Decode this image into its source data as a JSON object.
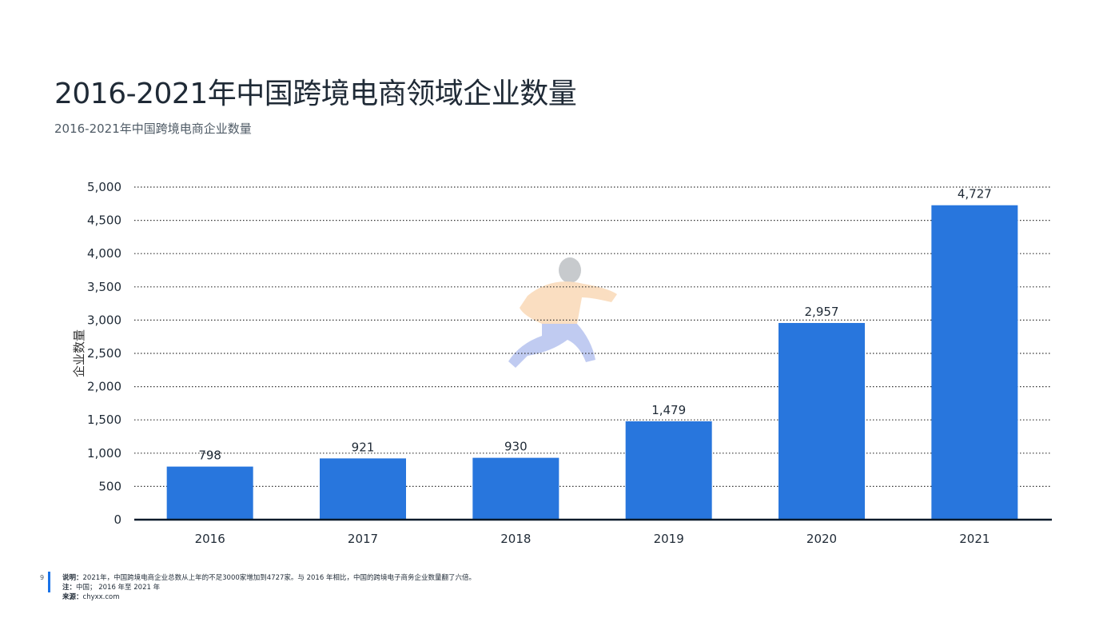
{
  "header": {
    "title": "2016-2021年中国跨境电商领域企业数量",
    "subtitle": "2016-2021年中国跨境电商企业数量"
  },
  "chart_data": {
    "type": "bar",
    "categories": [
      "2016",
      "2017",
      "2018",
      "2019",
      "2020",
      "2021"
    ],
    "values": [
      798,
      921,
      930,
      1479,
      2957,
      4727
    ],
    "value_labels": [
      "798",
      "921",
      "930",
      "1,479",
      "2,957",
      "4,727"
    ],
    "ylabel": "企业数量",
    "xlabel": "",
    "ylim": [
      0,
      5000
    ],
    "yticks": [
      0,
      500,
      1000,
      1500,
      2000,
      2500,
      3000,
      3500,
      4000,
      4500,
      5000
    ],
    "ytick_labels": [
      "0",
      "500",
      "1,000",
      "1,500",
      "2,000",
      "2,500",
      "3,000",
      "3,500",
      "4,000",
      "4,500",
      "5,000"
    ],
    "grid": "horizontal-dotted",
    "bar_color": "#2876dd"
  },
  "footer": {
    "page_number": "9",
    "note_label": "说明：",
    "note_text": "2021年，中国跨境电商企业总数从上年的不足3000家增加到4727家。与 2016 年相比，中国的跨境电子商务企业数量翻了六倍。",
    "zhu_label": "注：",
    "zhu_text": "中国； 2016 年至 2021 年",
    "source_label": "来源：",
    "source_text": "chyxx.com"
  },
  "watermark": {
    "icon": "running-person-watermark-icon"
  }
}
